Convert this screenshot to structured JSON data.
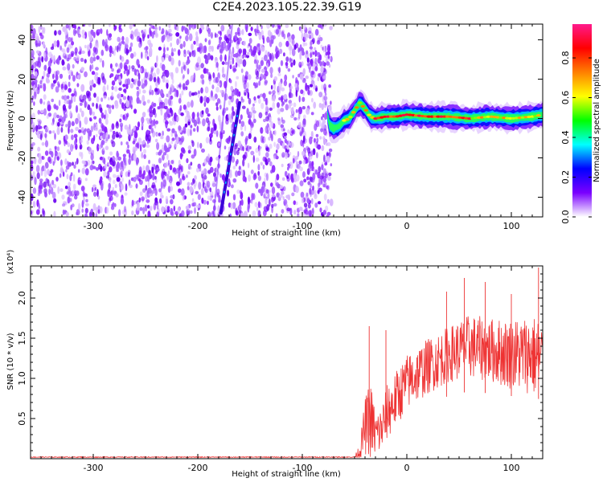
{
  "title": "C2E4.2023.105.22.39.G19",
  "chart_data": [
    {
      "type": "heatmap",
      "xlabel": "Height of straight line (km)",
      "ylabel": "Frequency (Hz)",
      "xlim": [
        -360,
        130
      ],
      "ylim": [
        -50,
        48
      ],
      "xticks": [
        -300,
        -200,
        -100,
        0,
        100
      ],
      "yticks": [
        -40,
        -20,
        0,
        20,
        40
      ],
      "colorbar": {
        "label": "Normalized spectral amplitude",
        "range": [
          0.0,
          0.97
        ],
        "ticks": [
          0.0,
          0.2,
          0.4,
          0.6,
          0.8
        ],
        "colors": [
          "#ffffff",
          "#7a00ff",
          "#0000ff",
          "#00ffff",
          "#00ff00",
          "#ffff00",
          "#ff8000",
          "#ff0000",
          "#ff1a8c"
        ]
      },
      "features": {
        "noise_region_x": [
          -360,
          -72
        ],
        "noise_mean_amplitude": 0.15,
        "diagonal_streak": {
          "x": [
            -178,
            -160
          ],
          "y": [
            -48,
            8
          ]
        },
        "signal_trace": [
          [
            -75,
            -3
          ],
          [
            -70,
            -5
          ],
          [
            -65,
            -4
          ],
          [
            -60,
            -1
          ],
          [
            -55,
            0
          ],
          [
            -50,
            4
          ],
          [
            -45,
            8
          ],
          [
            -40,
            5
          ],
          [
            -35,
            1
          ],
          [
            -30,
            0
          ],
          [
            -20,
            1
          ],
          [
            -10,
            1
          ],
          [
            0,
            2
          ],
          [
            20,
            1
          ],
          [
            40,
            1
          ],
          [
            60,
            0
          ],
          [
            80,
            1
          ],
          [
            100,
            0
          ],
          [
            120,
            1
          ],
          [
            130,
            2
          ]
        ],
        "signal_peak_x": [
          -30,
          60
        ]
      },
      "grid": false
    },
    {
      "type": "line",
      "xlabel": "Height of straight line (km)",
      "ylabel": "SNR (10 * v/v)",
      "y_multiplier": "(x10⁴)",
      "xlim": [
        -360,
        130
      ],
      "ylim": [
        0,
        2.4
      ],
      "xticks": [
        -300,
        -200,
        -100,
        0,
        100
      ],
      "yticks": [
        0.5,
        1.0,
        1.5,
        2.0
      ],
      "ytick_labels": [
        "0.5",
        "1.0",
        "1.5",
        "2.0"
      ],
      "series": [
        {
          "color": "#ee3333",
          "envelope": [
            {
              "x": -360,
              "mean": 0.02,
              "amp": 0.005
            },
            {
              "x": -50,
              "mean": 0.02,
              "amp": 0.005
            },
            {
              "x": -45,
              "mean": 0.1,
              "amp": 0.1
            },
            {
              "x": -40,
              "mean": 0.4,
              "amp": 0.35
            },
            {
              "x": -35,
              "mean": 0.5,
              "amp": 0.5
            },
            {
              "x": -30,
              "mean": 0.3,
              "amp": 0.3
            },
            {
              "x": -25,
              "mean": 0.35,
              "amp": 0.3
            },
            {
              "x": -20,
              "mean": 0.55,
              "amp": 0.35
            },
            {
              "x": -10,
              "mean": 0.75,
              "amp": 0.35
            },
            {
              "x": 0,
              "mean": 0.95,
              "amp": 0.35
            },
            {
              "x": 20,
              "mean": 1.15,
              "amp": 0.35
            },
            {
              "x": 40,
              "mean": 1.3,
              "amp": 0.35
            },
            {
              "x": 60,
              "mean": 1.4,
              "amp": 0.4
            },
            {
              "x": 80,
              "mean": 1.35,
              "amp": 0.4
            },
            {
              "x": 100,
              "mean": 1.3,
              "amp": 0.45
            },
            {
              "x": 120,
              "mean": 1.3,
              "amp": 0.5
            },
            {
              "x": 130,
              "mean": 1.2,
              "amp": 0.55
            }
          ],
          "peaks": [
            {
              "x": -36,
              "y": 1.65
            },
            {
              "x": -20,
              "y": 1.6
            },
            {
              "x": 38,
              "y": 2.08
            },
            {
              "x": 55,
              "y": 2.25
            },
            {
              "x": 75,
              "y": 2.2
            },
            {
              "x": 100,
              "y": 2.05
            },
            {
              "x": 126,
              "y": 2.38
            }
          ]
        }
      ],
      "grid": false
    }
  ]
}
